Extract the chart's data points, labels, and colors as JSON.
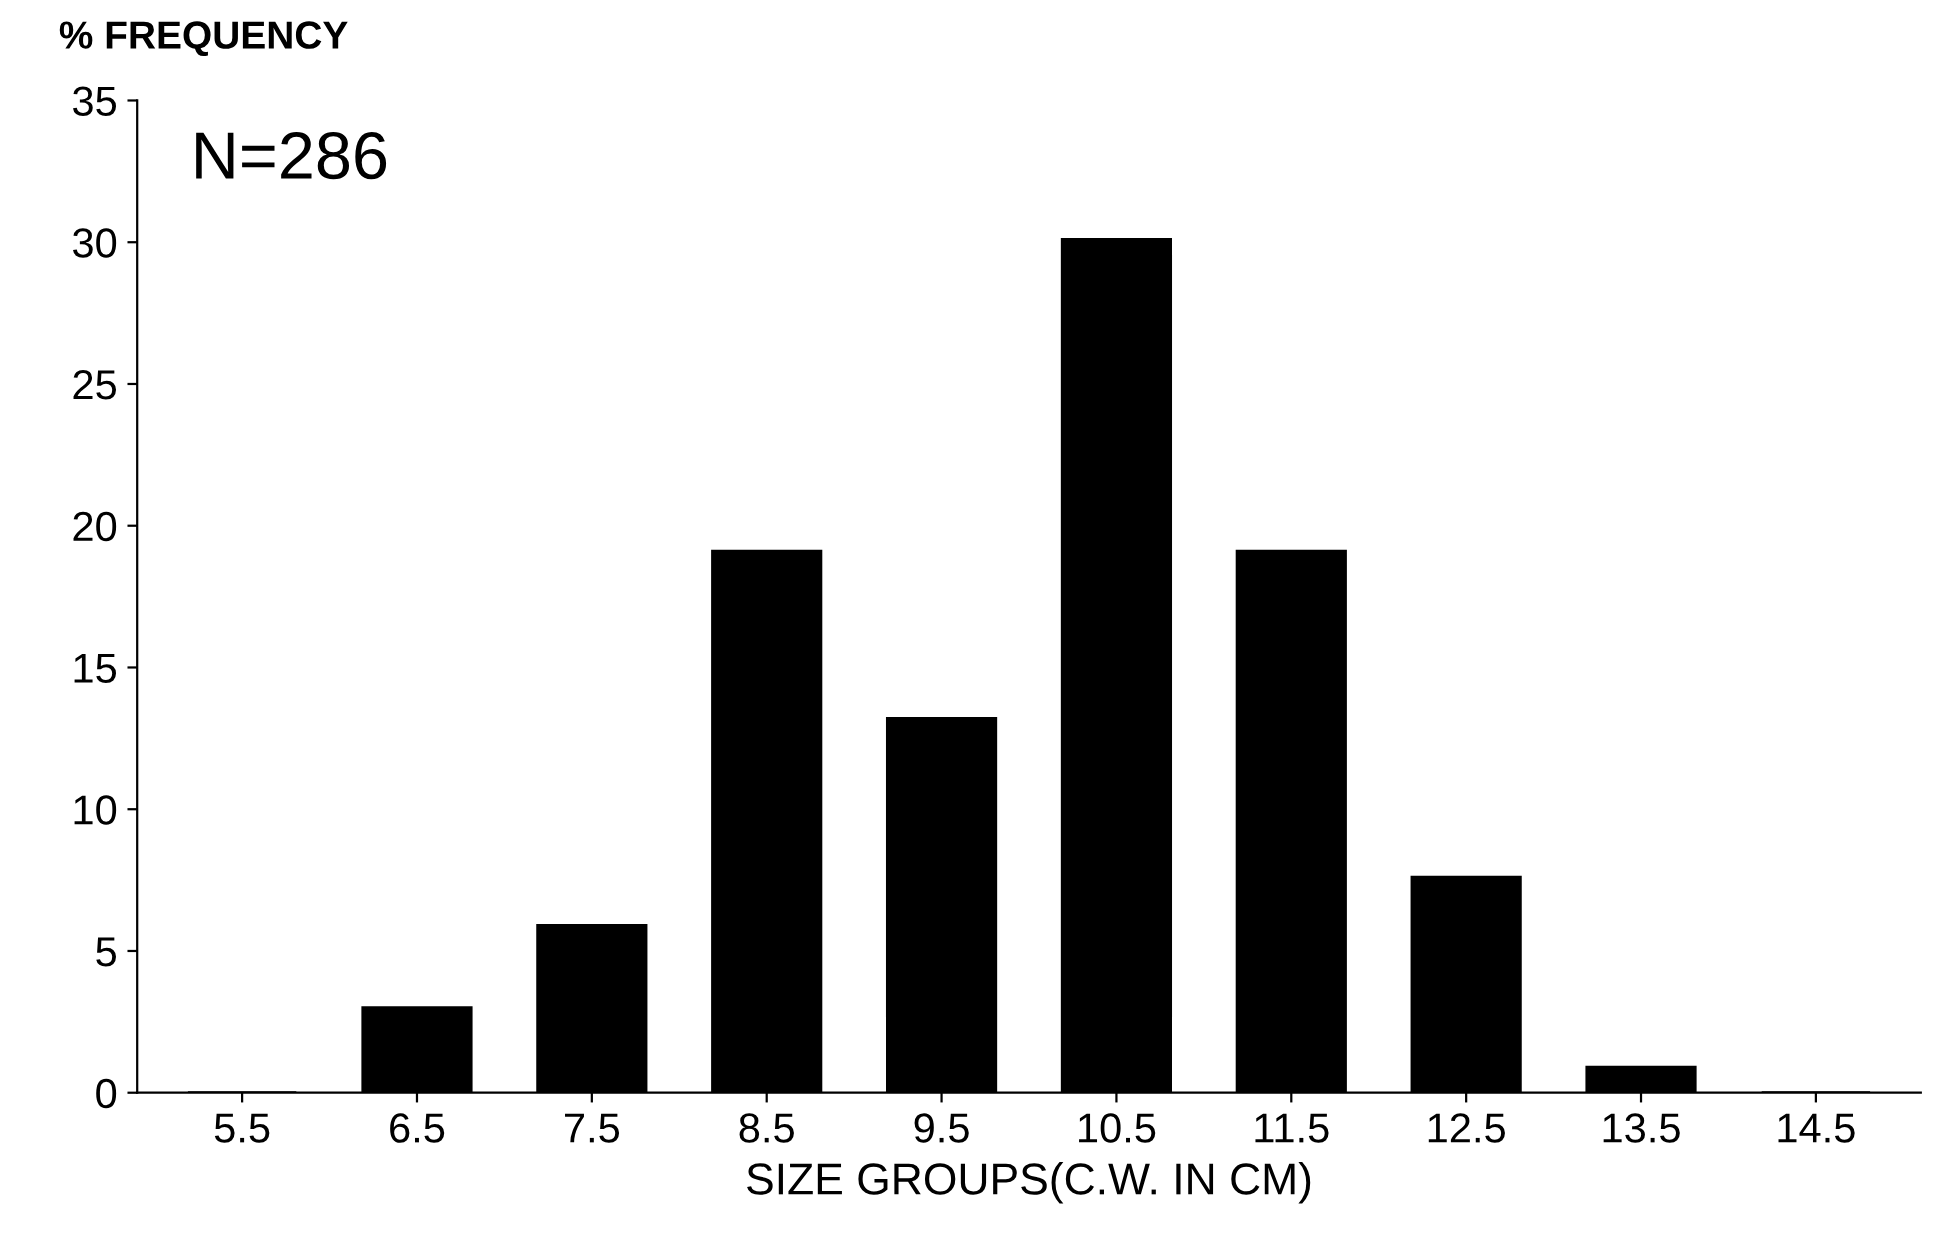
{
  "chart_data": {
    "type": "bar",
    "xlabel": "SIZE GROUPS(C.W. IN CM)",
    "ylabel": "% FREQUENCY",
    "annotations": [
      "N=286"
    ],
    "categories": [
      "5.5",
      "6.5",
      "7.5",
      "8.5",
      "9.5",
      "10.5",
      "11.5",
      "12.5",
      "13.5",
      "14.5"
    ],
    "values": [
      0,
      3.0,
      5.9,
      19.1,
      13.2,
      30.1,
      19.1,
      7.6,
      0.9,
      0
    ],
    "color": "#000000",
    "ylim": [
      0,
      35
    ],
    "yticks": [
      0,
      5,
      10,
      15,
      20,
      25,
      30,
      35
    ],
    "grid": false
  }
}
